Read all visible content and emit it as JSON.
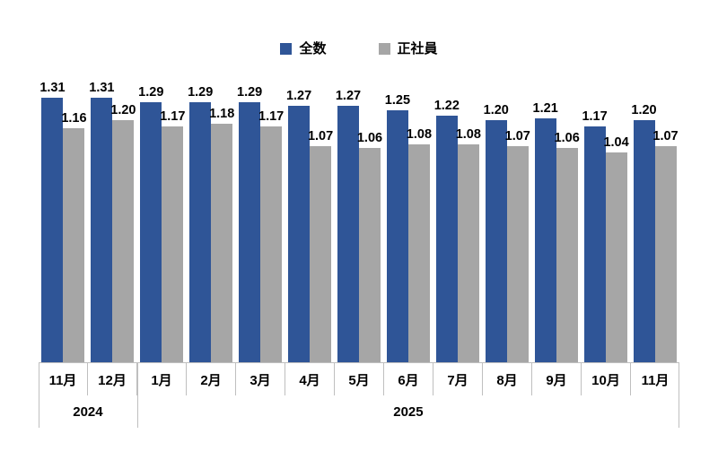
{
  "colors": {
    "series_all": "#2F5597",
    "series_regular": "#A6A6A6",
    "axis_line": "#BFBFBF",
    "text": "#000000",
    "background": "#FFFFFF"
  },
  "legend": {
    "items": [
      {
        "label": "全数"
      },
      {
        "label": "正社員"
      }
    ]
  },
  "chart_data": {
    "type": "bar",
    "title": "",
    "xlabel": "",
    "ylabel": "",
    "categories": [
      "11月",
      "12月",
      "1月",
      "2月",
      "3月",
      "4月",
      "5月",
      "6月",
      "7月",
      "8月",
      "9月",
      "10月",
      "11月"
    ],
    "year_groups": [
      {
        "label": "2024",
        "span": 2
      },
      {
        "label": "2025",
        "span": 11
      }
    ],
    "series": [
      {
        "name": "全数",
        "color": "#2F5597",
        "values": [
          1.31,
          1.31,
          1.29,
          1.29,
          1.29,
          1.27,
          1.27,
          1.25,
          1.22,
          1.2,
          1.21,
          1.17,
          1.2
        ]
      },
      {
        "name": "正社員",
        "color": "#A6A6A6",
        "values": [
          1.16,
          1.2,
          1.17,
          1.18,
          1.17,
          1.07,
          1.06,
          1.08,
          1.08,
          1.07,
          1.06,
          1.04,
          1.07
        ]
      }
    ],
    "ylim": [
      0,
      1.4
    ],
    "value_labels": true,
    "value_label_format": "0.00",
    "grid": false,
    "legend_position": "top-center",
    "y_axis_visible": false
  }
}
